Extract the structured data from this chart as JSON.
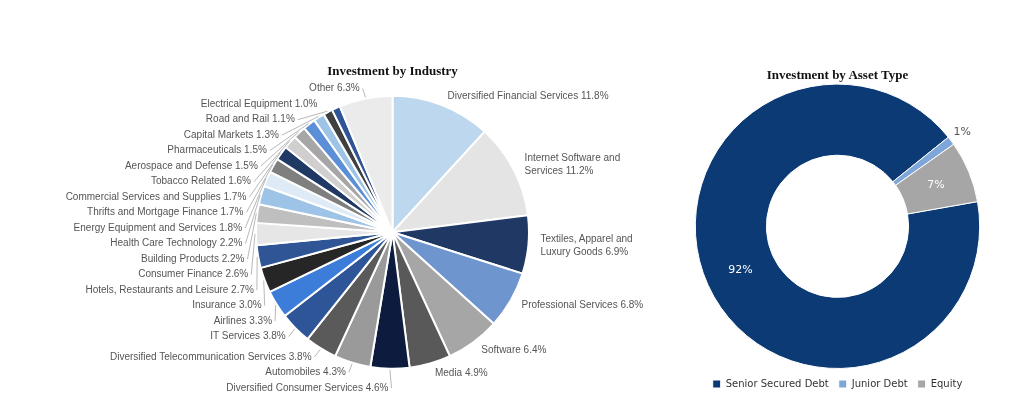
{
  "chart_data": [
    {
      "type": "pie",
      "title": "Investment by Industry",
      "categories": [
        "Diversified Financial Services",
        "Internet Software and Services",
        "Textiles, Apparel and Luxury Goods",
        "Professional Services",
        "Software",
        "Media",
        "Diversified Consumer Services",
        "Automobiles",
        "Diversified Telecommunication Services",
        "IT Services",
        "Airlines",
        "Insurance",
        "Hotels, Restaurants and Leisure",
        "Consumer Finance",
        "Building Products",
        "Health Care Technology",
        "Energy Equipment and Services",
        "Thrifts and Mortgage Finance",
        "Commercial Services and Supplies",
        "Tobacco Related",
        "Aerospace and Defense",
        "Pharmaceuticals",
        "Capital Markets",
        "Road and Rail",
        "Electrical Equipment",
        "Other"
      ],
      "values": [
        11.8,
        11.2,
        6.9,
        6.8,
        6.4,
        4.9,
        4.6,
        4.3,
        3.8,
        3.8,
        3.3,
        3.0,
        2.7,
        2.6,
        2.2,
        2.2,
        1.8,
        1.7,
        1.7,
        1.6,
        1.5,
        1.5,
        1.3,
        1.1,
        1.0,
        6.3
      ],
      "value_labels": [
        "11.8%",
        "11.2%",
        "6.9%",
        "6.8%",
        "6.4%",
        "4.9%",
        "4.6%",
        "4.3%",
        "3.8%",
        "3.8%",
        "3.3%",
        "3.0%",
        "2.7%",
        "2.6%",
        "2.2%",
        "2.2%",
        "1.8%",
        "1.7%",
        "1.7%",
        "1.6%",
        "1.5%",
        "1.5%",
        "1.3%",
        "1.1%",
        "1.0%",
        "6.3%"
      ],
      "colors": [
        "#bdd7ee",
        "#e4e4e4",
        "#1f3864",
        "#6f95cf",
        "#a6a6a6",
        "#595959",
        "#0d1b3e",
        "#9a9a9a",
        "#5a5a5a",
        "#2e5597",
        "#3b7dd8",
        "#262626",
        "#2f5597",
        "#e7e6e6",
        "#bfbfbf",
        "#9dc3e6",
        "#deebf7",
        "#7f7f7f",
        "#1f3864",
        "#d0cece",
        "#a6a6a6",
        "#5b8fd6",
        "#9dc3e6",
        "#404040",
        "#2f5597",
        "#ebebeb"
      ]
    },
    {
      "type": "donut",
      "title": "Investment by Asset Type",
      "categories": [
        "Senior Secured Debt",
        "Junior Debt",
        "Equity"
      ],
      "values": [
        92,
        1,
        7
      ],
      "value_labels": [
        "92%",
        "1%",
        "7%"
      ],
      "colors": [
        "#0b3a75",
        "#7fa6d8",
        "#a6a6a6"
      ],
      "legend": "bottom"
    }
  ]
}
